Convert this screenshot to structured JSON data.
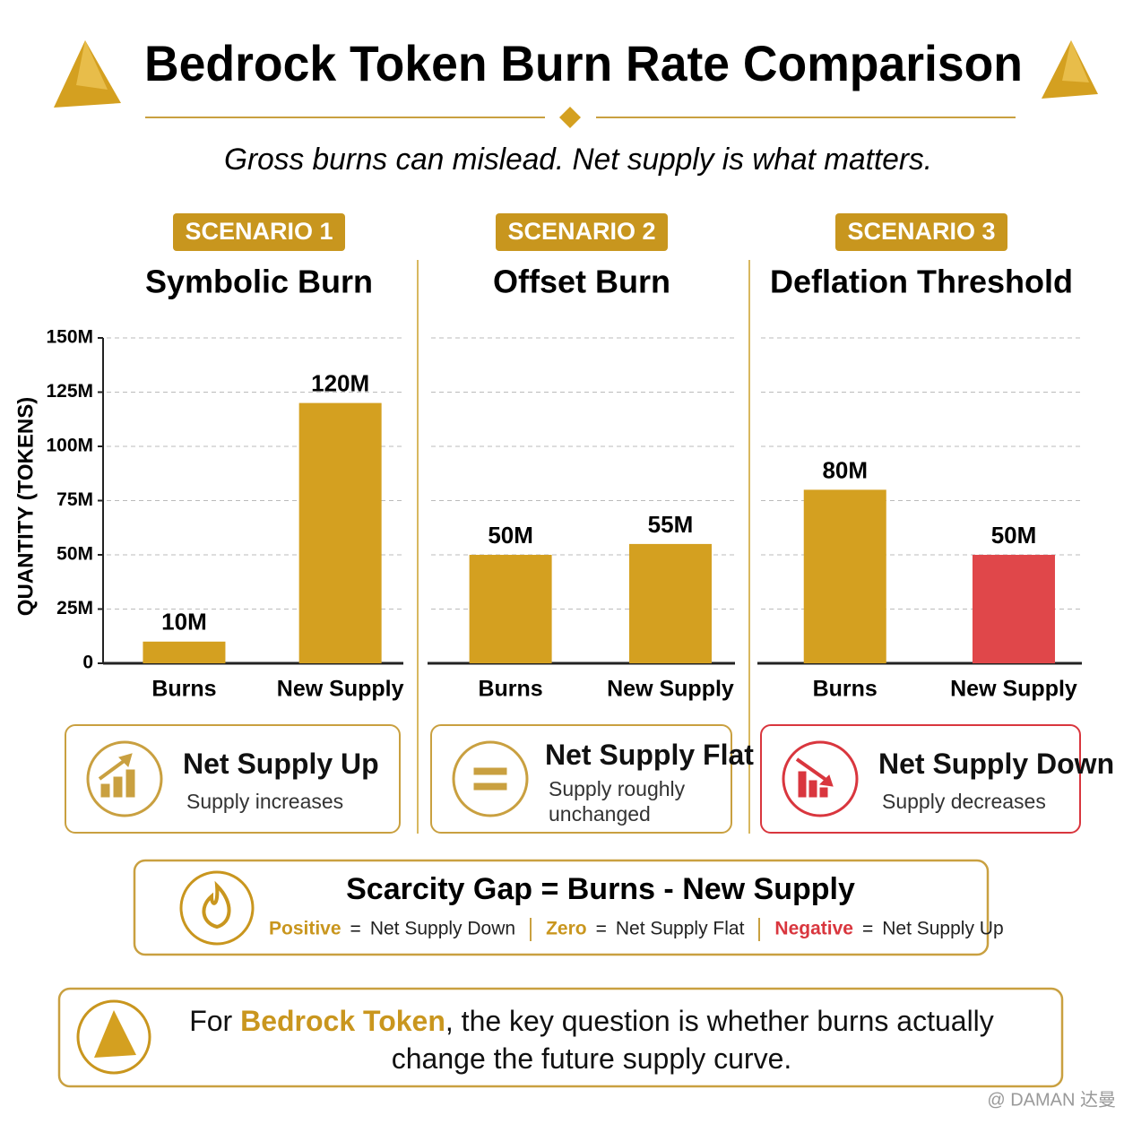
{
  "header": {
    "title": "Bedrock Token Burn Rate Comparison",
    "subtitle": "Gross burns can mislead. Net supply is what matters."
  },
  "chart_data": [
    {
      "type": "bar",
      "badge": "SCENARIO 1",
      "title": "Symbolic Burn",
      "ylabel": "QUANTITY (TOKENS)",
      "categories": [
        "Burns",
        "New Supply"
      ],
      "values": [
        10000000,
        120000000
      ],
      "value_labels": [
        "10M",
        "120M"
      ],
      "colors": [
        "#d4a020",
        "#d4a020"
      ],
      "ylim": [
        0,
        150000000
      ],
      "yticks": [
        0,
        {
          "value": 25000000,
          "label": "25M"
        },
        {
          "value": 50000000,
          "label": "50M"
        },
        {
          "value": 75000000,
          "label": "75M"
        },
        {
          "value": 100000000,
          "label": "100M"
        },
        {
          "value": 125000000,
          "label": "125M"
        },
        {
          "value": 150000000,
          "label": "150M"
        }
      ],
      "grid": true,
      "outcome": {
        "title": "Net Supply Up",
        "text": "Supply increases",
        "color": "#c9a040"
      }
    },
    {
      "type": "bar",
      "badge": "SCENARIO 2",
      "title": "Offset Burn",
      "categories": [
        "Burns",
        "New Supply"
      ],
      "values": [
        50000000,
        55000000
      ],
      "value_labels": [
        "50M",
        "55M"
      ],
      "colors": [
        "#d4a020",
        "#d4a020"
      ],
      "ylim": [
        0,
        150000000
      ],
      "yticks": [
        0,
        25000000,
        50000000,
        75000000,
        100000000,
        125000000,
        150000000
      ],
      "grid": true,
      "outcome": {
        "title": "Net Supply Flat",
        "text": "Supply roughly unchanged",
        "color": "#c9a040"
      }
    },
    {
      "type": "bar",
      "badge": "SCENARIO 3",
      "title": "Deflation Threshold",
      "categories": [
        "Burns",
        "New Supply"
      ],
      "values": [
        80000000,
        50000000
      ],
      "value_labels": [
        "80M",
        "50M"
      ],
      "colors": [
        "#d4a020",
        "#e0474a"
      ],
      "ylim": [
        0,
        150000000
      ],
      "yticks": [
        0,
        25000000,
        50000000,
        75000000,
        100000000,
        125000000,
        150000000
      ],
      "grid": true,
      "outcome": {
        "title": "Net Supply Down",
        "text": "Supply decreases",
        "color": "#d9363e"
      }
    }
  ],
  "formula": {
    "text": "Scarcity Gap = Burns - New Supply",
    "items": [
      {
        "term": "Positive",
        "eq": "=",
        "meaning": "Net Supply Down",
        "color": "#c9961e"
      },
      {
        "term": "Zero",
        "eq": "=",
        "meaning": "Net Supply Flat",
        "color": "#c9961e"
      },
      {
        "term": "Negative",
        "eq": "=",
        "meaning": "Net Supply Up",
        "color": "#d9363e"
      }
    ]
  },
  "footer": {
    "parts": [
      "For ",
      "Bedrock Token",
      ", the key question is whether burns actually change the future supply curve."
    ]
  },
  "watermark": "@ DAMAN 达曼"
}
